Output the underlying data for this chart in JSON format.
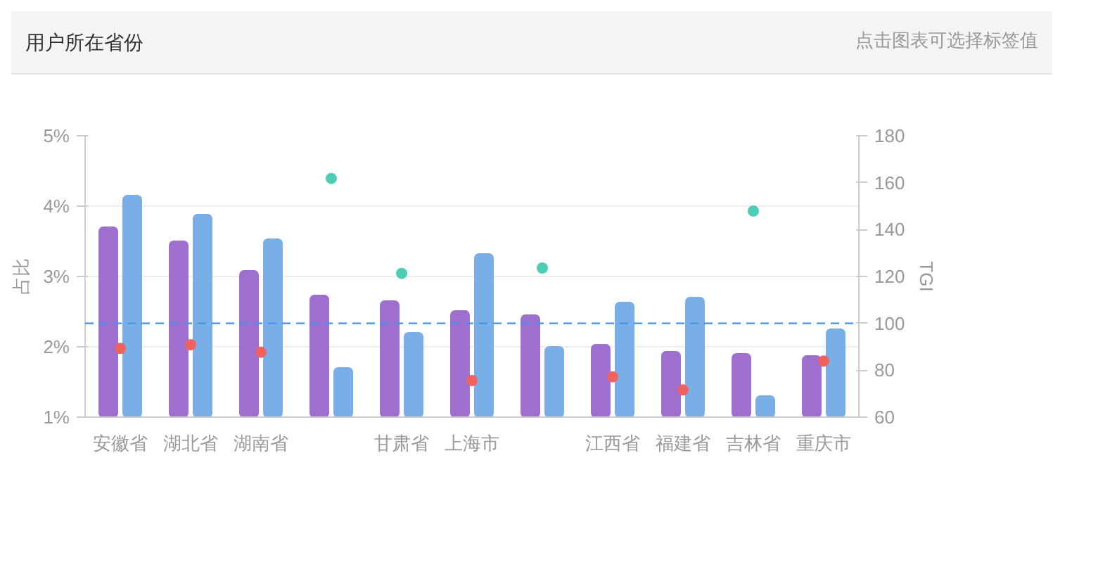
{
  "chart_data": {
    "type": "bar",
    "title": "用户所在省份",
    "annotations": [
      "点击图表可选择标签值"
    ],
    "categories": [
      "安徽省",
      "湖北省",
      "湖南省",
      null,
      "甘肃省",
      "上海市",
      null,
      "江西省",
      "福建省",
      "吉林省",
      "重庆市"
    ],
    "series": [
      {
        "color": "#9e6fcf",
        "values": [
          3.7,
          3.5,
          3.08,
          2.73,
          2.65,
          2.51,
          2.45,
          2.03,
          1.93,
          1.9,
          1.87
        ]
      },
      {
        "color": "#7aaee6",
        "values": [
          4.15,
          3.88,
          3.53,
          1.7,
          2.2,
          3.32,
          2.0,
          2.63,
          2.7,
          1.3,
          2.25
        ]
      },
      {
        "type": "scatter",
        "axis": "y2",
        "marker": "circle",
        "color": "#f0625f",
        "values": [
          89.3,
          90.9,
          87.7,
          null,
          null,
          75.6,
          null,
          77.2,
          71.6,
          null,
          83.9
        ]
      },
      {
        "type": "scatter",
        "axis": "y2",
        "marker": "circle",
        "color": "#4ecdb6",
        "values": [
          null,
          null,
          null,
          161.8,
          121.3,
          null,
          123.6,
          null,
          null,
          147.9,
          null
        ]
      }
    ],
    "ylabel": "占比",
    "y2label": "TGI",
    "ylim": [
      1,
      5
    ],
    "yticks": [
      {
        "value": 1,
        "label": "1%"
      },
      {
        "value": 2,
        "label": "2%"
      },
      {
        "value": 3,
        "label": "3%"
      },
      {
        "value": 4,
        "label": "4%"
      },
      {
        "value": 5,
        "label": "5%"
      }
    ],
    "y2lim": [
      60,
      180
    ],
    "y2ticks": [
      60,
      80,
      100,
      120,
      140,
      160,
      180
    ],
    "ref_lines": [
      {
        "axis": "y2",
        "value": 100,
        "color": "#4a90e2",
        "line_style": "dashed"
      }
    ],
    "grid": "y"
  }
}
